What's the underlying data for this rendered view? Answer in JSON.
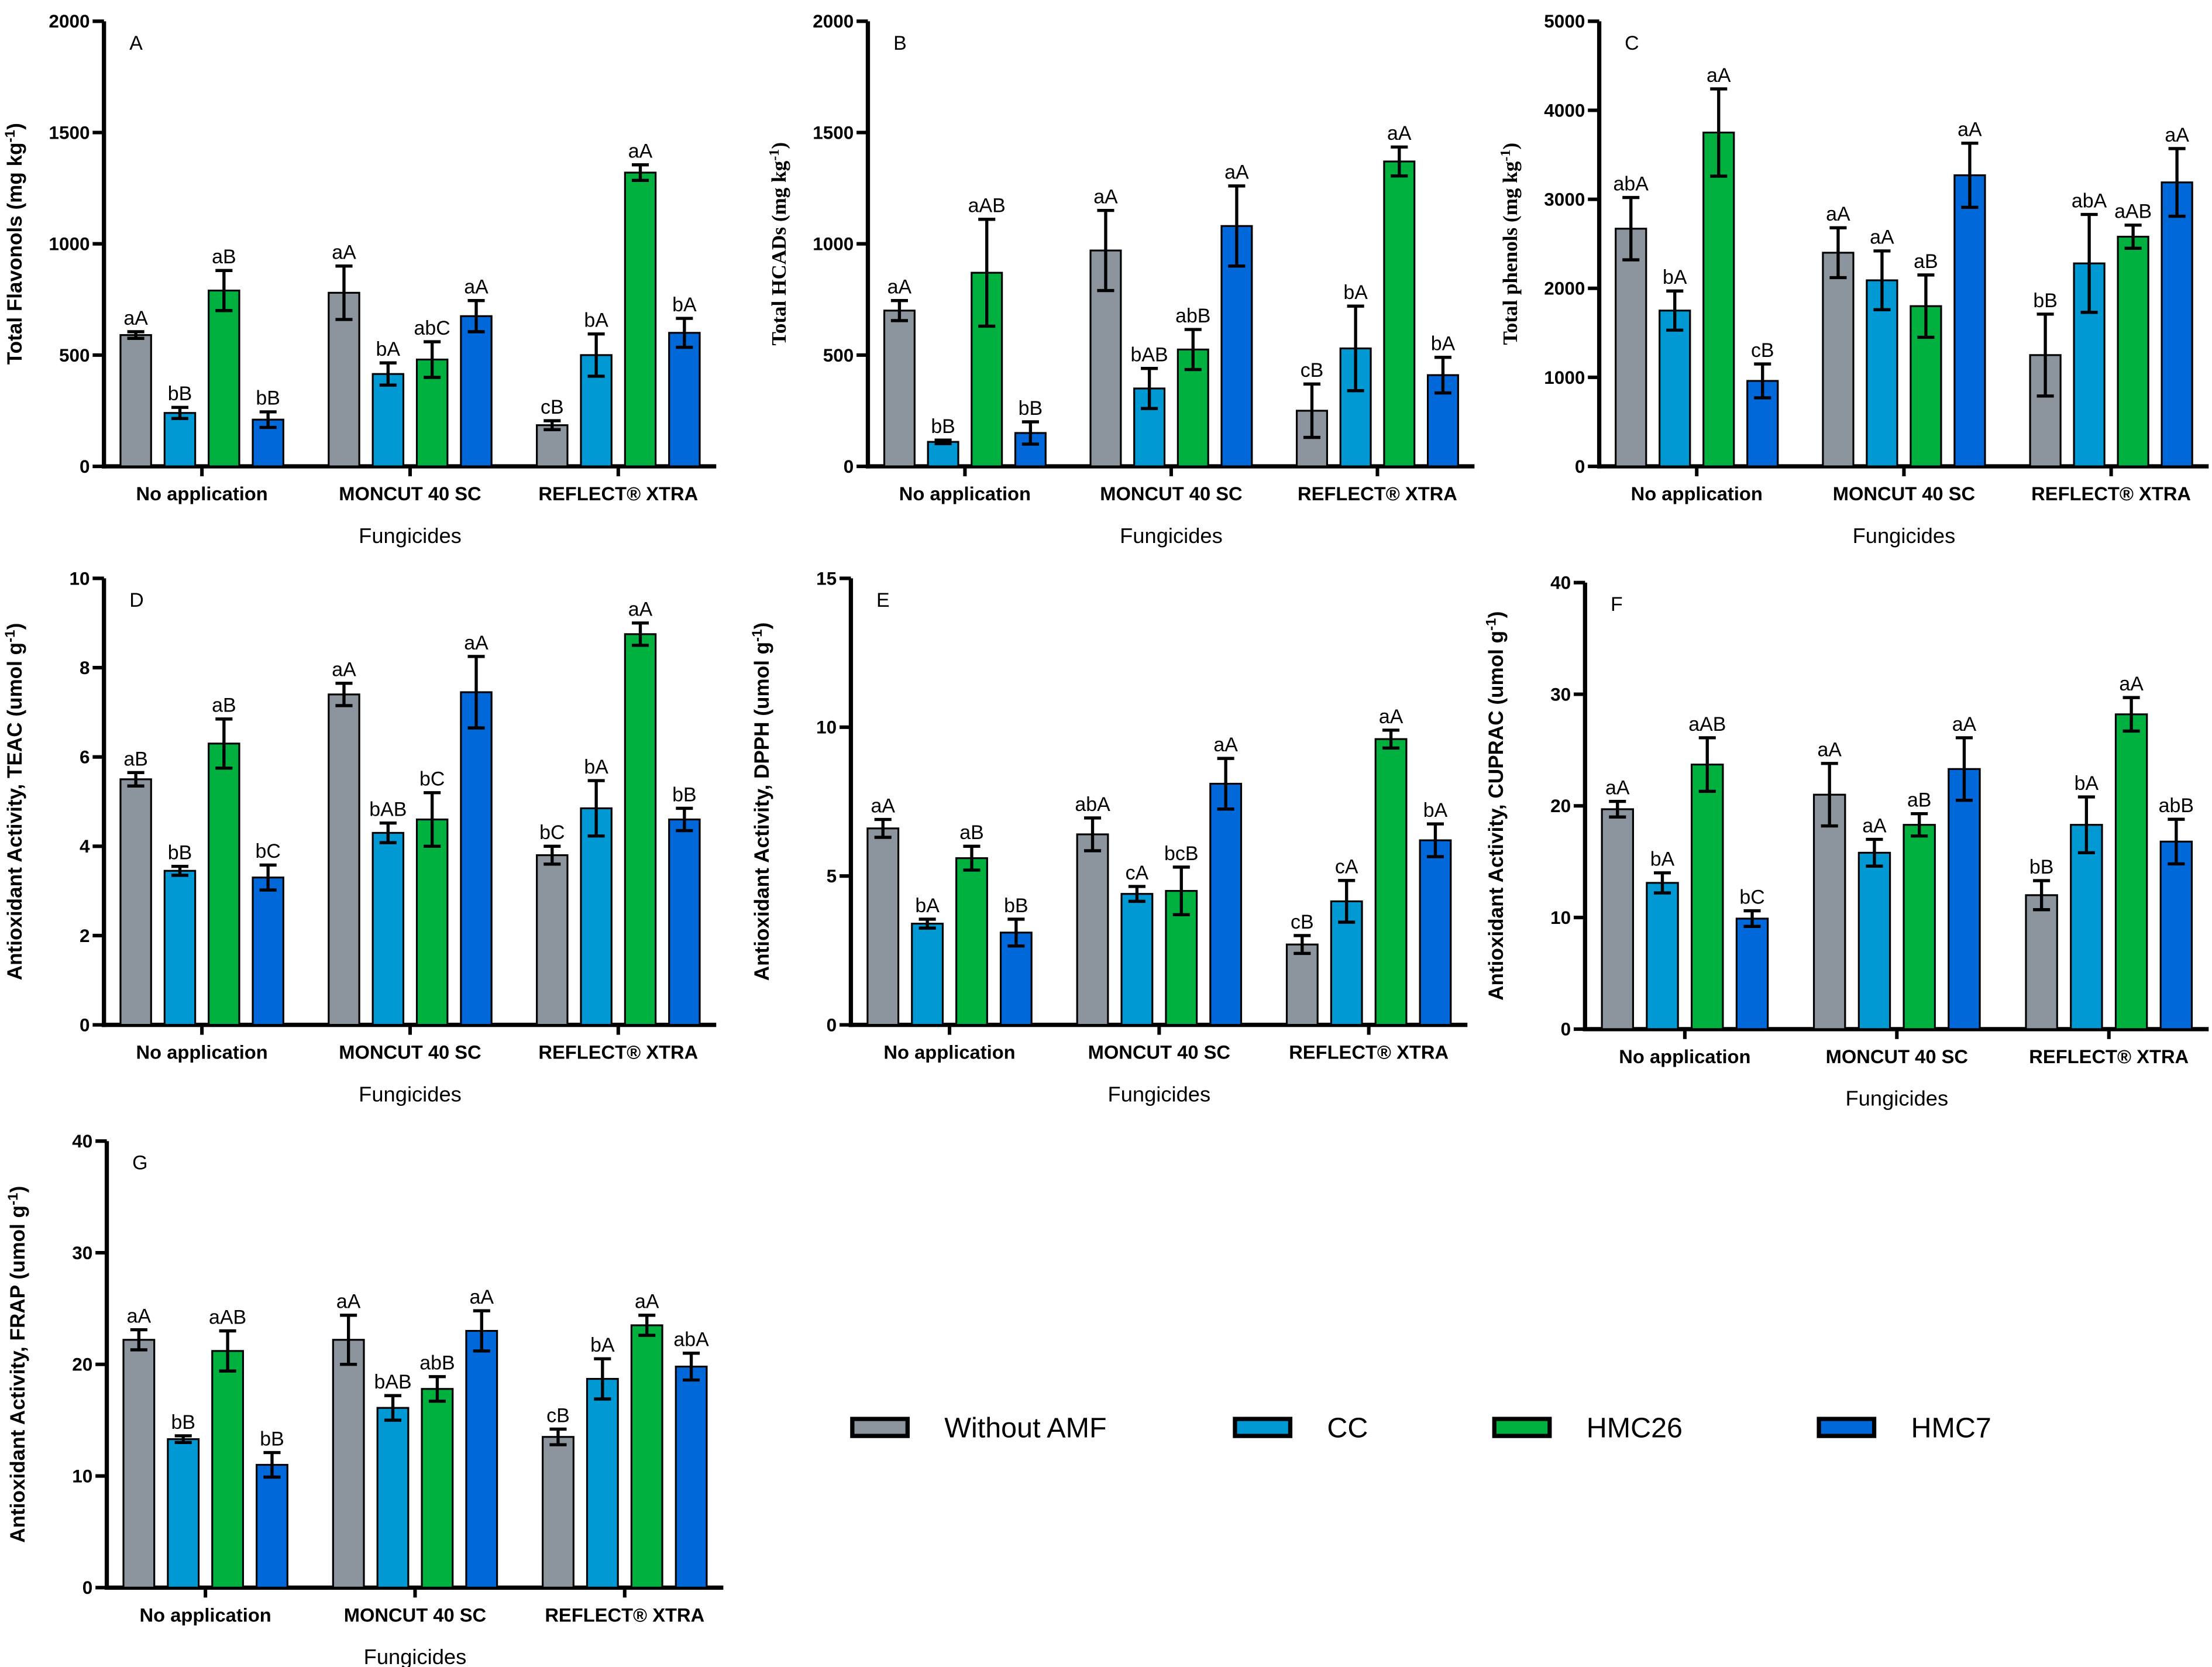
{
  "legend": [
    {
      "name": "Without AMF",
      "color": "#8c959d"
    },
    {
      "name": "CC",
      "color": "#0099d4"
    },
    {
      "name": "HMC26",
      "color": "#00b140"
    },
    {
      "name": "HMC7",
      "color": "#0068d9"
    }
  ],
  "chart_data": [
    {
      "panel": "A",
      "type": "bar",
      "ylabel": "Total Flavonols (mg kg",
      "ylabel_sup": "-1",
      "ylabel_end": ")",
      "xlabel": "Fungicides",
      "ylim": [
        0,
        2000
      ],
      "yticks": [
        0,
        500,
        1000,
        1500,
        2000
      ],
      "categories": [
        "No application",
        "MONCUT 40 SC",
        "REFLECT® XTRA"
      ],
      "series": [
        {
          "name": "Without AMF",
          "values": [
            590,
            780,
            185
          ],
          "errors": [
            15,
            120,
            20
          ],
          "labels": [
            "aA",
            "aA",
            "cB"
          ]
        },
        {
          "name": "CC",
          "values": [
            240,
            415,
            500
          ],
          "errors": [
            25,
            50,
            95
          ],
          "labels": [
            "bB",
            "bA",
            "bA"
          ]
        },
        {
          "name": "HMC26",
          "values": [
            790,
            480,
            1320
          ],
          "errors": [
            90,
            80,
            35
          ],
          "labels": [
            "aB",
            "abC",
            "aA"
          ]
        },
        {
          "name": "HMC7",
          "values": [
            210,
            675,
            600
          ],
          "errors": [
            35,
            70,
            65
          ],
          "labels": [
            "bB",
            "aA",
            "bA"
          ]
        }
      ]
    },
    {
      "panel": "B",
      "type": "bar",
      "ylabel": "Total HCADs (mg kg",
      "ylabel_sup": "-1",
      "ylabel_end": ")",
      "xlabel": "Fungicides",
      "ylim": [
        0,
        2000
      ],
      "yticks": [
        0,
        500,
        1000,
        1500,
        2000
      ],
      "categories": [
        "No application",
        "MONCUT 40 SC",
        "REFLECT® XTRA"
      ],
      "series": [
        {
          "name": "Without AMF",
          "values": [
            700,
            970,
            250
          ],
          "errors": [
            45,
            180,
            120
          ],
          "labels": [
            "aA",
            "aA",
            "cB"
          ]
        },
        {
          "name": "CC",
          "values": [
            110,
            350,
            530
          ],
          "errors": [
            8,
            90,
            190
          ],
          "labels": [
            "bB",
            "bAB",
            "bA"
          ]
        },
        {
          "name": "HMC26",
          "values": [
            870,
            525,
            1370
          ],
          "errors": [
            240,
            90,
            65
          ],
          "labels": [
            "aAB",
            "abB",
            "aA"
          ]
        },
        {
          "name": "HMC7",
          "values": [
            150,
            1080,
            410
          ],
          "errors": [
            50,
            180,
            80
          ],
          "labels": [
            "bB",
            "aA",
            "bA"
          ]
        }
      ]
    },
    {
      "panel": "C",
      "type": "bar",
      "ylabel": "Total phenols (mg kg",
      "ylabel_sup": "-1",
      "ylabel_end": ")",
      "xlabel": "Fungicides",
      "ylim": [
        0,
        5000
      ],
      "yticks": [
        0,
        1000,
        2000,
        3000,
        4000,
        5000
      ],
      "categories": [
        "No application",
        "MONCUT 40 SC",
        "REFLECT® XTRA"
      ],
      "series": [
        {
          "name": "Without AMF",
          "values": [
            2670,
            2400,
            1250
          ],
          "errors": [
            350,
            280,
            460
          ],
          "labels": [
            "abA",
            "aA",
            "bB"
          ]
        },
        {
          "name": "CC",
          "values": [
            1750,
            2090,
            2280
          ],
          "errors": [
            220,
            330,
            550
          ],
          "labels": [
            "bA",
            "aA",
            "abA"
          ]
        },
        {
          "name": "HMC26",
          "values": [
            3750,
            1800,
            2580
          ],
          "errors": [
            490,
            350,
            130
          ],
          "labels": [
            "aA",
            "aB",
            "aAB"
          ]
        },
        {
          "name": "HMC7",
          "values": [
            960,
            3270,
            3190
          ],
          "errors": [
            190,
            360,
            380
          ],
          "labels": [
            "cB",
            "aA",
            "aA"
          ]
        }
      ]
    },
    {
      "panel": "D",
      "type": "bar",
      "ylabel": "Antioxidant Activity, TEAC (umol g",
      "ylabel_sup": "-1",
      "ylabel_end": ")",
      "xlabel": "Fungicides",
      "ylim": [
        0,
        10
      ],
      "yticks": [
        0,
        2,
        4,
        6,
        8,
        10
      ],
      "categories": [
        "No application",
        "MONCUT 40 SC",
        "REFLECT® XTRA"
      ],
      "series": [
        {
          "name": "Without AMF",
          "values": [
            5.5,
            7.4,
            3.8
          ],
          "errors": [
            0.15,
            0.25,
            0.2
          ],
          "labels": [
            "aB",
            "aA",
            "bC"
          ]
        },
        {
          "name": "CC",
          "values": [
            3.45,
            4.3,
            4.85
          ],
          "errors": [
            0.1,
            0.22,
            0.62
          ],
          "labels": [
            "bB",
            "bAB",
            "bA"
          ]
        },
        {
          "name": "HMC26",
          "values": [
            6.3,
            4.6,
            8.75
          ],
          "errors": [
            0.55,
            0.6,
            0.25
          ],
          "labels": [
            "aB",
            "bC",
            "aA"
          ]
        },
        {
          "name": "HMC7",
          "values": [
            3.3,
            7.45,
            4.6
          ],
          "errors": [
            0.28,
            0.8,
            0.25
          ],
          "labels": [
            "bC",
            "aA",
            "bB"
          ]
        }
      ]
    },
    {
      "panel": "E",
      "type": "bar",
      "ylabel": "Antioxidant Activity, DPPH (umol g",
      "ylabel_sup": "-1",
      "ylabel_end": ")",
      "xlabel": "Fungicides",
      "ylim": [
        0,
        15
      ],
      "yticks": [
        0,
        5,
        10,
        15
      ],
      "categories": [
        "No application",
        "MONCUT 40 SC",
        "REFLECT® XTRA"
      ],
      "series": [
        {
          "name": "Without AMF",
          "values": [
            6.6,
            6.4,
            2.7
          ],
          "errors": [
            0.3,
            0.55,
            0.3
          ],
          "labels": [
            "aA",
            "abA",
            "cB"
          ]
        },
        {
          "name": "CC",
          "values": [
            3.4,
            4.4,
            4.15
          ],
          "errors": [
            0.15,
            0.25,
            0.7
          ],
          "labels": [
            "bA",
            "cA",
            "cA"
          ]
        },
        {
          "name": "HMC26",
          "values": [
            5.6,
            4.5,
            9.6
          ],
          "errors": [
            0.4,
            0.8,
            0.3
          ],
          "labels": [
            "aB",
            "bcB",
            "aA"
          ]
        },
        {
          "name": "HMC7",
          "values": [
            3.1,
            8.1,
            6.2
          ],
          "errors": [
            0.45,
            0.85,
            0.55
          ],
          "labels": [
            "bB",
            "aA",
            "bA"
          ]
        }
      ]
    },
    {
      "panel": "F",
      "type": "bar",
      "ylabel": "Antioxidant Activity, CUPRAC (umol g",
      "ylabel_sup": "-1",
      "ylabel_end": ")",
      "xlabel": "Fungicides",
      "ylim": [
        0,
        40
      ],
      "yticks": [
        0,
        10,
        20,
        30,
        40
      ],
      "categories": [
        "No application",
        "MONCUT 40 SC",
        "REFLECT® XTRA"
      ],
      "series": [
        {
          "name": "Without AMF",
          "values": [
            19.7,
            21,
            12
          ],
          "errors": [
            0.7,
            2.8,
            1.3
          ],
          "labels": [
            "aA",
            "aA",
            "bB"
          ]
        },
        {
          "name": "CC",
          "values": [
            13.1,
            15.8,
            18.3
          ],
          "errors": [
            0.9,
            1.2,
            2.5
          ],
          "labels": [
            "bA",
            "aA",
            "bA"
          ]
        },
        {
          "name": "HMC26",
          "values": [
            23.7,
            18.3,
            28.2
          ],
          "errors": [
            2.4,
            1,
            1.5
          ],
          "labels": [
            "aAB",
            "aB",
            "aA"
          ]
        },
        {
          "name": "HMC7",
          "values": [
            9.9,
            23.3,
            16.8
          ],
          "errors": [
            0.7,
            2.8,
            2
          ],
          "labels": [
            "bC",
            "aA",
            "abB"
          ]
        }
      ]
    },
    {
      "panel": "G",
      "type": "bar",
      "ylabel": "Antioxidant Activity, FRAP (umol g",
      "ylabel_sup": "-1",
      "ylabel_end": ")",
      "xlabel": "Fungicides",
      "ylim": [
        0,
        40
      ],
      "yticks": [
        0,
        10,
        20,
        30,
        40
      ],
      "categories": [
        "No application",
        "MONCUT 40 SC",
        "REFLECT® XTRA"
      ],
      "series": [
        {
          "name": "Without AMF",
          "values": [
            22.2,
            22.2,
            13.5
          ],
          "errors": [
            0.9,
            2.2,
            0.7
          ],
          "labels": [
            "aA",
            "aA",
            "cB"
          ]
        },
        {
          "name": "CC",
          "values": [
            13.3,
            16.1,
            18.7
          ],
          "errors": [
            0.3,
            1.1,
            1.8
          ],
          "labels": [
            "bB",
            "bAB",
            "bA"
          ]
        },
        {
          "name": "HMC26",
          "values": [
            21.2,
            17.8,
            23.5
          ],
          "errors": [
            1.8,
            1.1,
            0.9
          ],
          "labels": [
            "aAB",
            "abB",
            "aA"
          ]
        },
        {
          "name": "HMC7",
          "values": [
            11,
            23,
            19.8
          ],
          "errors": [
            1.1,
            1.8,
            1.2
          ],
          "labels": [
            "bB",
            "aA",
            "abA"
          ]
        }
      ]
    }
  ]
}
